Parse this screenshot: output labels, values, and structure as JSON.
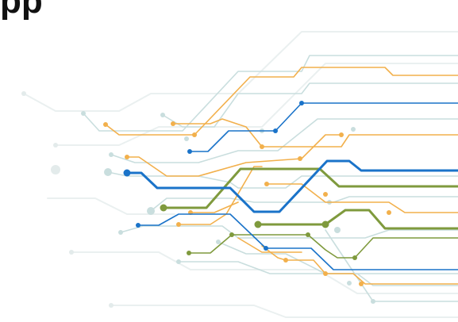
{
  "header": {
    "title": "pp"
  },
  "illustration": {
    "name": "circuit-board-lines-graphic",
    "colors": {
      "blue": "#1a73c9",
      "green": "#7f9a3d",
      "orange": "#f2b04c",
      "light": "#c9dede",
      "faint": "#eaf0f0"
    }
  }
}
